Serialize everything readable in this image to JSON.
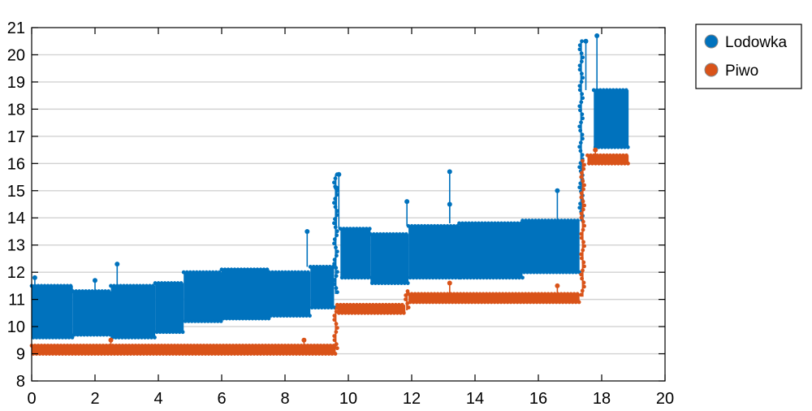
{
  "chart_data": {
    "type": "line",
    "title": "",
    "xlabel": "",
    "ylabel": "",
    "xlim": [
      0,
      20
    ],
    "ylim": [
      8,
      21
    ],
    "x_ticks": [
      "0",
      "2",
      "4",
      "6",
      "8",
      "10",
      "12",
      "14",
      "16",
      "18",
      "20"
    ],
    "y_ticks": [
      "8",
      "9",
      "10",
      "11",
      "12",
      "13",
      "14",
      "15",
      "16",
      "17",
      "18",
      "19",
      "20",
      "21"
    ],
    "grid": "horizontal",
    "legend_position": "outside-right",
    "series": [
      {
        "name": "Lodowka",
        "color": "#0072bd",
        "segments": [
          {
            "x0": 0.0,
            "x1": 1.3,
            "low": 9.6,
            "high": 11.5
          },
          {
            "x0": 1.3,
            "x1": 2.5,
            "low": 9.7,
            "high": 11.3
          },
          {
            "x0": 2.5,
            "x1": 3.9,
            "low": 9.6,
            "high": 11.5
          },
          {
            "x0": 3.9,
            "x1": 4.8,
            "low": 9.8,
            "high": 11.6
          },
          {
            "x0": 4.8,
            "x1": 6.0,
            "low": 10.2,
            "high": 12.0
          },
          {
            "x0": 6.0,
            "x1": 7.5,
            "low": 10.3,
            "high": 12.1
          },
          {
            "x0": 7.5,
            "x1": 8.8,
            "low": 10.4,
            "high": 12.0
          },
          {
            "x0": 8.8,
            "x1": 9.55,
            "low": 10.7,
            "high": 12.2
          },
          {
            "x0": 9.75,
            "x1": 10.7,
            "low": 11.8,
            "high": 13.6
          },
          {
            "x0": 10.7,
            "x1": 11.9,
            "low": 11.6,
            "high": 13.4
          },
          {
            "x0": 11.9,
            "x1": 13.5,
            "low": 11.8,
            "high": 13.7
          },
          {
            "x0": 13.5,
            "x1": 15.5,
            "low": 11.8,
            "high": 13.8
          },
          {
            "x0": 15.5,
            "x1": 17.3,
            "low": 12.0,
            "high": 13.9
          },
          {
            "x0": 17.75,
            "x1": 18.85,
            "low": 16.6,
            "high": 18.7
          }
        ],
        "spikes": [
          {
            "x": 0.1,
            "y": 11.8
          },
          {
            "x": 2.0,
            "y": 11.7
          },
          {
            "x": 2.7,
            "y": 12.3
          },
          {
            "x": 8.7,
            "y": 13.5
          },
          {
            "x": 9.62,
            "y": 15.1
          },
          {
            "x": 9.7,
            "y": 15.6
          },
          {
            "x": 11.85,
            "y": 14.6
          },
          {
            "x": 13.2,
            "y": 15.7
          },
          {
            "x": 13.2,
            "y": 14.5
          },
          {
            "x": 16.6,
            "y": 15.0
          },
          {
            "x": 17.5,
            "y": 20.5
          },
          {
            "x": 17.85,
            "y": 20.7
          }
        ],
        "transitions": [
          {
            "x": 9.6,
            "low": 11.2,
            "high": 15.6
          },
          {
            "x": 17.35,
            "low": 13.9,
            "high": 20.5
          }
        ]
      },
      {
        "name": "Piwo",
        "color": "#d95319",
        "segments": [
          {
            "x0": 0.0,
            "x1": 9.6,
            "low": 9.0,
            "high": 9.3
          },
          {
            "x0": 9.65,
            "x1": 11.8,
            "low": 10.5,
            "high": 10.8
          },
          {
            "x0": 11.9,
            "x1": 17.3,
            "low": 10.9,
            "high": 11.2
          },
          {
            "x0": 17.55,
            "x1": 18.85,
            "low": 16.0,
            "high": 16.3
          }
        ],
        "spikes": [
          {
            "x": 2.5,
            "y": 9.5
          },
          {
            "x": 8.6,
            "y": 9.5
          },
          {
            "x": 13.2,
            "y": 11.6
          },
          {
            "x": 16.6,
            "y": 11.5
          },
          {
            "x": 17.8,
            "y": 16.5
          }
        ],
        "transitions": [
          {
            "x": 9.6,
            "low": 9.2,
            "high": 10.7
          },
          {
            "x": 11.85,
            "low": 10.6,
            "high": 11.3
          },
          {
            "x": 17.4,
            "low": 11.1,
            "high": 16.1
          }
        ]
      }
    ]
  }
}
